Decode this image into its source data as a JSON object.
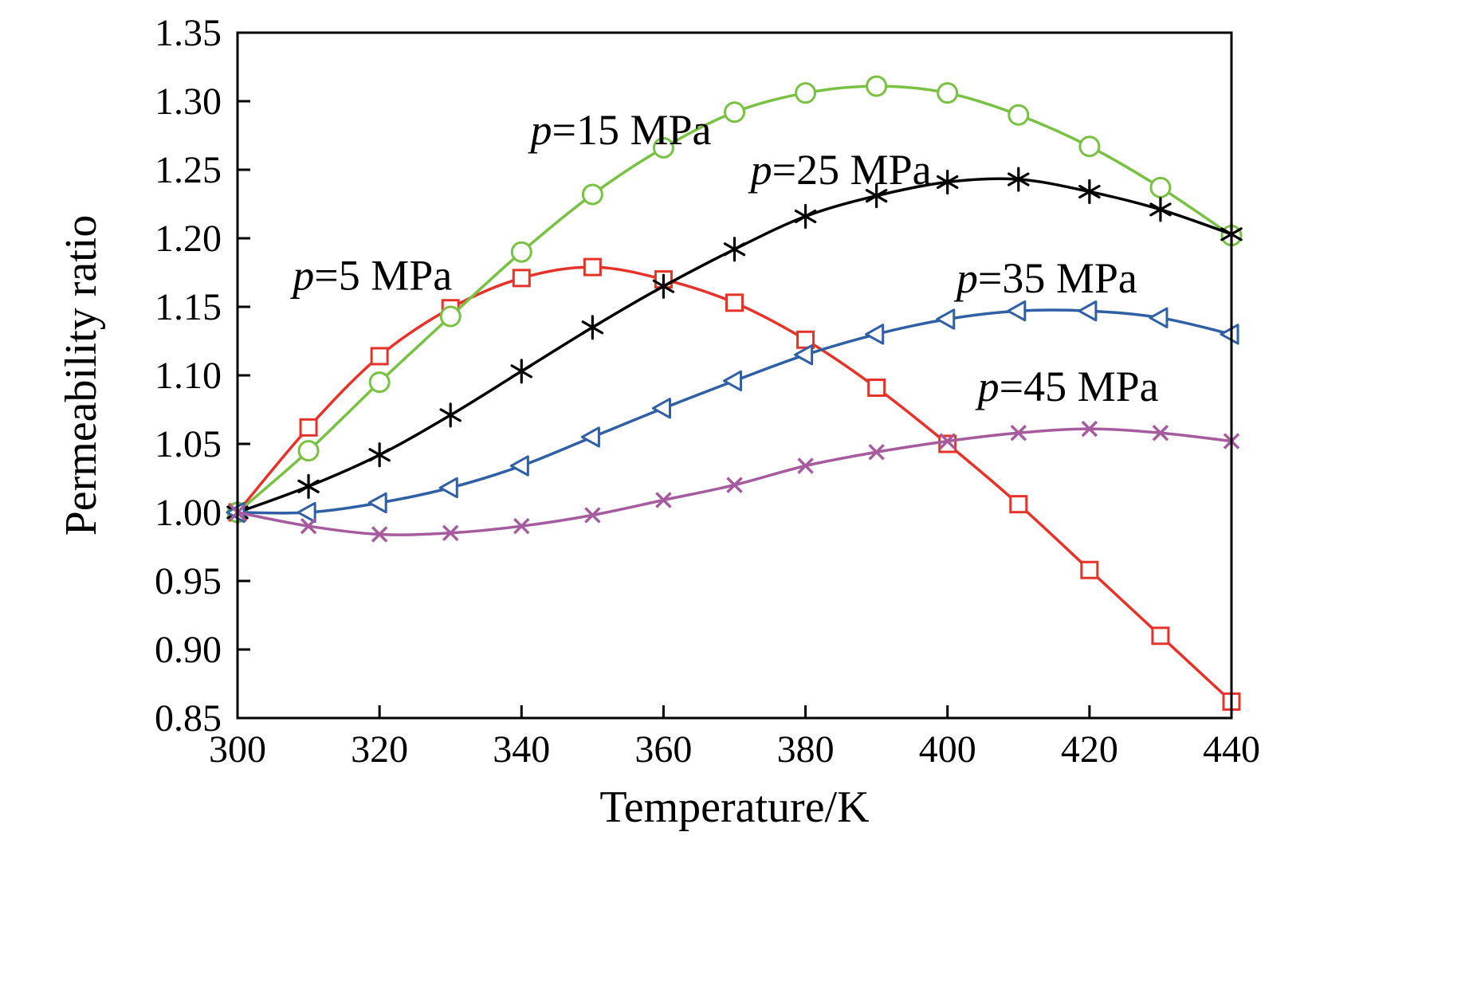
{
  "chart_data": {
    "type": "line",
    "title": "",
    "xlabel": "Temperature/K",
    "ylabel": "Permeability ratio",
    "xlim": [
      300,
      440
    ],
    "ylim": [
      0.85,
      1.35
    ],
    "grid": false,
    "legend_position": "none",
    "x_ticks": [
      300,
      320,
      340,
      360,
      380,
      400,
      420,
      440
    ],
    "x_tick_labels": [
      "300",
      "320",
      "340",
      "360",
      "380",
      "400",
      "420",
      "440"
    ],
    "y_ticks": [
      0.85,
      0.9,
      0.95,
      1.0,
      1.05,
      1.1,
      1.15,
      1.2,
      1.25,
      1.3,
      1.35
    ],
    "y_tick_labels": [
      "0.85",
      "0.90",
      "0.95",
      "1.00",
      "1.05",
      "1.10",
      "1.15",
      "1.20",
      "1.25",
      "1.30",
      "1.35"
    ],
    "x": [
      300,
      310,
      320,
      330,
      340,
      350,
      360,
      370,
      380,
      390,
      400,
      410,
      420,
      430,
      440
    ],
    "series": [
      {
        "id": "p5-mpa",
        "name": "p=5 MPa",
        "color": "#e5332a",
        "marker": "square",
        "values": [
          1.0,
          1.062,
          1.114,
          1.149,
          1.171,
          1.179,
          1.17,
          1.153,
          1.126,
          1.091,
          1.05,
          1.006,
          0.958,
          0.91,
          0.862
        ]
      },
      {
        "id": "p15-mpa",
        "name": "p=15 MPa",
        "color": "#79c143",
        "marker": "circle",
        "values": [
          1.0,
          1.045,
          1.095,
          1.143,
          1.19,
          1.232,
          1.266,
          1.292,
          1.306,
          1.311,
          1.306,
          1.29,
          1.267,
          1.237,
          1.202
        ]
      },
      {
        "id": "p25-mpa",
        "name": "p=25 MPa",
        "color": "#000000",
        "marker": "asterisk",
        "values": [
          1.0,
          1.019,
          1.042,
          1.071,
          1.103,
          1.135,
          1.165,
          1.192,
          1.216,
          1.231,
          1.241,
          1.243,
          1.234,
          1.221,
          1.203
        ]
      },
      {
        "id": "p35-mpa",
        "name": "p=35 MPa",
        "color": "#2f5fa5",
        "marker": "triangle-left",
        "values": [
          1.0,
          1.0,
          1.007,
          1.018,
          1.034,
          1.055,
          1.076,
          1.096,
          1.115,
          1.13,
          1.141,
          1.147,
          1.147,
          1.142,
          1.13
        ]
      },
      {
        "id": "p45-mpa",
        "name": "p=45 MPa",
        "color": "#a65b9f",
        "marker": "cross",
        "values": [
          1.0,
          0.99,
          0.984,
          0.985,
          0.99,
          0.998,
          1.009,
          1.02,
          1.034,
          1.044,
          1.052,
          1.058,
          1.061,
          1.058,
          1.052
        ]
      }
    ],
    "annotations": [
      {
        "text": "p=15 MPa",
        "x": 354.0,
        "y": 1.279
      },
      {
        "text": "p=25 MPa",
        "x": 385.0,
        "y": 1.25
      },
      {
        "text": "p=5 MPa",
        "x": 319.0,
        "y": 1.173
      },
      {
        "text": "p=35 MPa",
        "x": 414.0,
        "y": 1.171
      },
      {
        "text": "p=45 MPa",
        "x": 417.0,
        "y": 1.092
      }
    ]
  }
}
